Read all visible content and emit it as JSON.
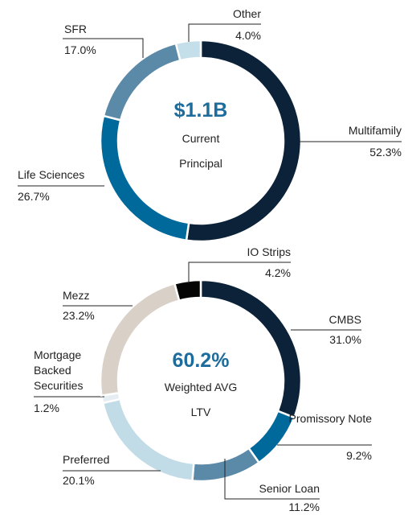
{
  "chart_data": [
    {
      "type": "pie",
      "title": "$1.1B",
      "subtitle": "Current Principal",
      "categories": [
        "Multifamily",
        "Life Sciences",
        "SFR",
        "Other"
      ],
      "values": [
        52.3,
        26.7,
        17.0,
        4.0
      ],
      "value_labels": [
        "52.3%",
        "26.7%",
        "17.0%",
        "4.0%"
      ],
      "colors": [
        "#0b2239",
        "#00699c",
        "#5b89a8",
        "#c4dfea"
      ]
    },
    {
      "type": "pie",
      "title": "60.2%",
      "subtitle": "Weighted AVG LTV",
      "categories": [
        "CMBS",
        "Promissory Note",
        "Senior Loan",
        "Preferred",
        "Mortgage Backed Securities",
        "Mezz",
        "IO Strips"
      ],
      "values": [
        31.0,
        9.2,
        11.2,
        20.1,
        1.2,
        23.2,
        4.2
      ],
      "value_labels": [
        "31.0%",
        "9.2%",
        "11.2%",
        "20.1%",
        "1.2%",
        "23.2%",
        "4.2%"
      ],
      "colors": [
        "#0b2239",
        "#00699c",
        "#5b89a8",
        "#c2dce7",
        "#e6eef3",
        "#d9d0c8",
        "#050505"
      ]
    }
  ]
}
